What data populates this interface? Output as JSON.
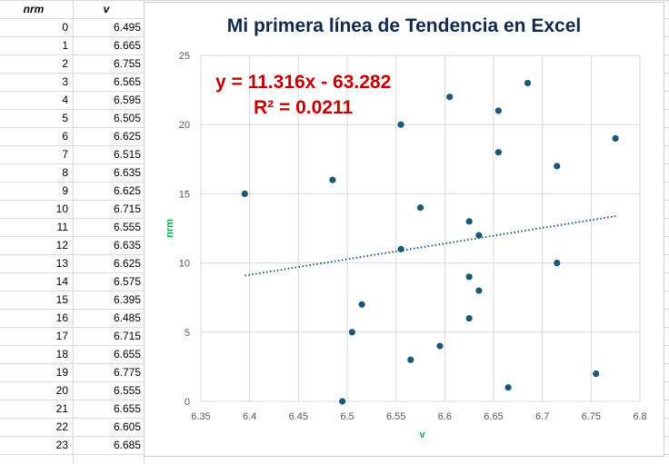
{
  "sheet": {
    "col_a_header": "nrm",
    "col_b_header": "v",
    "rows": [
      {
        "nrm": "0",
        "v": "6.495"
      },
      {
        "nrm": "1",
        "v": "6.665"
      },
      {
        "nrm": "2",
        "v": "6.755"
      },
      {
        "nrm": "3",
        "v": "6.565"
      },
      {
        "nrm": "4",
        "v": "6.595"
      },
      {
        "nrm": "5",
        "v": "6.505"
      },
      {
        "nrm": "6",
        "v": "6.625"
      },
      {
        "nrm": "7",
        "v": "6.515"
      },
      {
        "nrm": "8",
        "v": "6.635"
      },
      {
        "nrm": "9",
        "v": "6.625"
      },
      {
        "nrm": "10",
        "v": "6.715"
      },
      {
        "nrm": "11",
        "v": "6.555"
      },
      {
        "nrm": "12",
        "v": "6.635"
      },
      {
        "nrm": "13",
        "v": "6.625"
      },
      {
        "nrm": "14",
        "v": "6.575"
      },
      {
        "nrm": "15",
        "v": "6.395"
      },
      {
        "nrm": "16",
        "v": "6.485"
      },
      {
        "nrm": "17",
        "v": "6.715"
      },
      {
        "nrm": "18",
        "v": "6.655"
      },
      {
        "nrm": "19",
        "v": "6.775"
      },
      {
        "nrm": "20",
        "v": "6.555"
      },
      {
        "nrm": "21",
        "v": "6.655"
      },
      {
        "nrm": "22",
        "v": "6.605"
      },
      {
        "nrm": "23",
        "v": "6.685"
      }
    ]
  },
  "chart_data": {
    "type": "scatter",
    "title": "Mi primera línea de Tendencia en Excel",
    "xlabel": "v",
    "ylabel": "nrm",
    "xlim": [
      6.35,
      6.8
    ],
    "ylim": [
      0,
      25
    ],
    "x_ticks": [
      "6.35",
      "6.4",
      "6.45",
      "6.5",
      "6.55",
      "6.6",
      "6.65",
      "6.7",
      "6.75",
      "6.8"
    ],
    "y_ticks": [
      "0",
      "5",
      "10",
      "15",
      "20",
      "25"
    ],
    "grid": true,
    "x": [
      6.495,
      6.665,
      6.755,
      6.565,
      6.595,
      6.505,
      6.625,
      6.515,
      6.635,
      6.625,
      6.715,
      6.555,
      6.635,
      6.625,
      6.575,
      6.395,
      6.485,
      6.715,
      6.655,
      6.775,
      6.555,
      6.655,
      6.605,
      6.685
    ],
    "y": [
      0,
      1,
      2,
      3,
      4,
      5,
      6,
      7,
      8,
      9,
      10,
      11,
      12,
      13,
      14,
      15,
      16,
      17,
      18,
      19,
      20,
      21,
      22,
      23
    ],
    "trendline": {
      "type": "linear",
      "slope": 11.316,
      "intercept": -63.282,
      "equation_label": "y = 11.316x - 63.282",
      "r2_label": "R² = 0.0211"
    },
    "colors": {
      "marker": "#1b5978",
      "trendline": "#1b5978",
      "equation": "#c00000",
      "title": "#13294b",
      "axis_title": "#00b050"
    }
  }
}
